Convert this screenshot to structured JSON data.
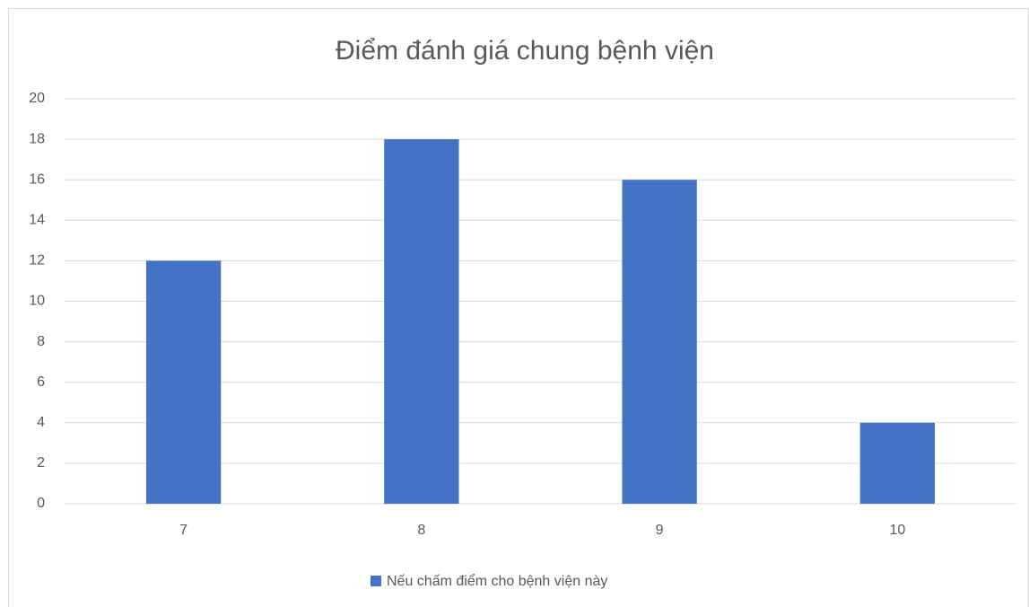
{
  "chart_data": {
    "type": "bar",
    "title": "Điểm đánh giá chung bệnh viện",
    "categories": [
      "7",
      "8",
      "9",
      "10"
    ],
    "series": [
      {
        "name": "Nếu chấm điểm cho bệnh viện này",
        "color": "#4472c4",
        "values": [
          12,
          18,
          16,
          4
        ]
      }
    ],
    "ylim": [
      0,
      20
    ],
    "yticks": [
      0,
      2,
      4,
      6,
      8,
      10,
      12,
      14,
      16,
      18,
      20
    ],
    "grid": true,
    "legend": "bottom"
  }
}
